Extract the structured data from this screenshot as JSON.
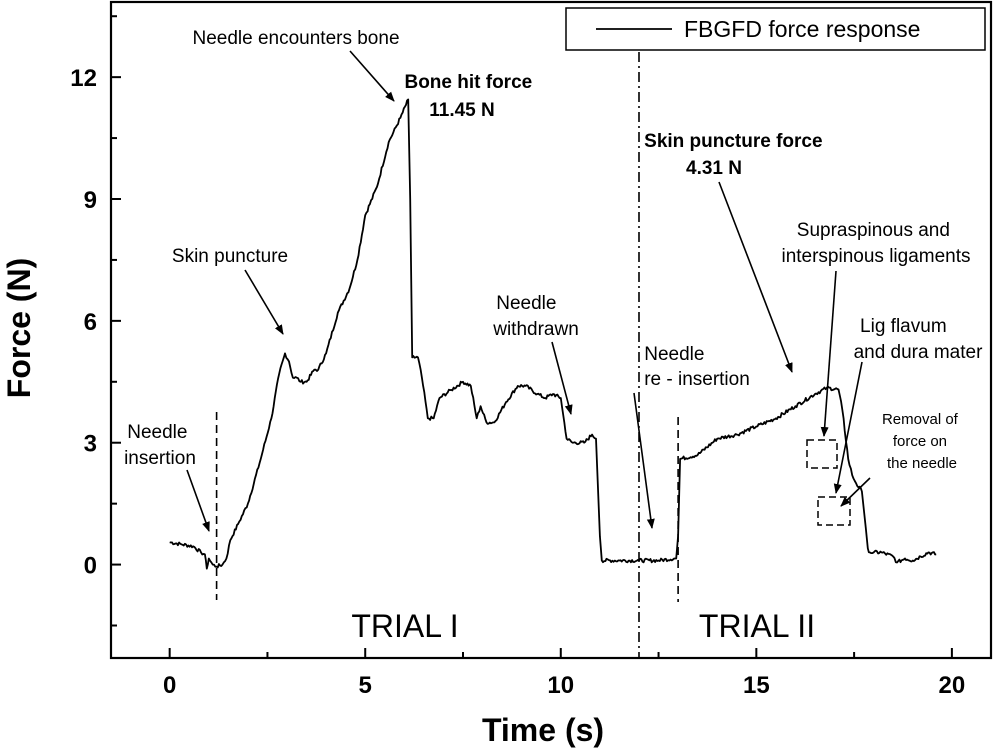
{
  "chart_data": {
    "type": "line",
    "xlabel": "Time (s)",
    "ylabel": "Force (N)",
    "xlim": [
      -1.5,
      21
    ],
    "ylim": [
      -2.3,
      13.85
    ],
    "xticks": [
      0,
      5,
      10,
      15,
      20
    ],
    "yticks": [
      0,
      3,
      6,
      9,
      12
    ],
    "grid": false,
    "legend": {
      "position": "top-right"
    },
    "series": [
      {
        "name": "FBGFD force response",
        "color": "#000000",
        "x": [
          0,
          0.3,
          0.6,
          0.8,
          0.9,
          0.95,
          1.0,
          1.1,
          1.2,
          1.35,
          1.45,
          1.55,
          1.75,
          2.0,
          2.3,
          2.6,
          2.8,
          2.95,
          3.05,
          3.15,
          3.25,
          3.35,
          3.5,
          3.7,
          3.8,
          4.0,
          4.3,
          4.6,
          4.8,
          5.0,
          5.3,
          5.6,
          5.9,
          6.1,
          6.15,
          6.2,
          6.35,
          6.45,
          6.6,
          6.75,
          6.9,
          7.2,
          7.5,
          7.7,
          7.85,
          7.95,
          8.1,
          8.3,
          8.6,
          8.9,
          9.1,
          9.4,
          9.6,
          9.8,
          10.0,
          10.15,
          10.3,
          10.6,
          10.8,
          10.9,
          11.0,
          11.05,
          11.5,
          12.0,
          12.5,
          12.9,
          12.95,
          13.0,
          13.05,
          13.5,
          14.0,
          14.5,
          15.0,
          15.5,
          16.0,
          16.5,
          16.8,
          17.1,
          17.2,
          17.35,
          17.45,
          17.55,
          17.7,
          17.8,
          17.85,
          17.9,
          18.0,
          18.2,
          18.5,
          18.6,
          18.8,
          19.0,
          19.2,
          19.4,
          19.6
        ],
        "y": [
          0.55,
          0.5,
          0.45,
          0.3,
          0.25,
          -0.1,
          0.15,
          0.0,
          -0.05,
          0.0,
          0.15,
          0.6,
          1.0,
          1.5,
          2.5,
          3.6,
          4.7,
          5.2,
          5.0,
          4.6,
          4.6,
          4.5,
          4.5,
          4.8,
          4.8,
          5.2,
          6.2,
          6.8,
          7.5,
          8.6,
          9.3,
          10.4,
          11.0,
          11.45,
          9.0,
          5.1,
          5.1,
          4.6,
          3.6,
          3.6,
          4.1,
          4.3,
          4.5,
          4.4,
          3.6,
          3.9,
          3.5,
          3.5,
          4.0,
          4.4,
          4.4,
          4.2,
          4.1,
          4.2,
          4.1,
          3.1,
          3.0,
          3.0,
          3.2,
          3.1,
          0.7,
          0.1,
          0.1,
          0.1,
          0.1,
          0.15,
          0.15,
          0.7,
          2.6,
          2.7,
          3.1,
          3.2,
          3.4,
          3.6,
          3.9,
          4.2,
          4.35,
          4.31,
          3.8,
          2.6,
          2.2,
          2.0,
          1.8,
          0.9,
          0.4,
          0.3,
          0.3,
          0.3,
          0.2,
          0.05,
          0.15,
          0.1,
          0.2,
          0.3,
          0.25
        ]
      }
    ],
    "annotations": [
      {
        "id": "needle-encounters-bone",
        "lines": [
          "Needle encounters bone"
        ],
        "bold": false,
        "small": false
      },
      {
        "id": "bone-hit-force",
        "lines": [
          "Bone hit force",
          "11.45 N"
        ],
        "bold": true,
        "small": false
      },
      {
        "id": "skin-puncture",
        "lines": [
          "Skin puncture"
        ],
        "bold": false,
        "small": false
      },
      {
        "id": "needle-insertion",
        "lines": [
          "Needle",
          "insertion"
        ],
        "bold": false,
        "small": false
      },
      {
        "id": "needle-withdrawn",
        "lines": [
          "Needle",
          "withdrawn"
        ],
        "bold": false,
        "small": false
      },
      {
        "id": "skin-puncture-force",
        "lines": [
          "Skin puncture force",
          "4.31 N"
        ],
        "bold": true,
        "small": false
      },
      {
        "id": "needle-reinsertion",
        "lines": [
          "Needle",
          "re - insertion"
        ],
        "bold": false,
        "small": false
      },
      {
        "id": "supraspinous",
        "lines": [
          "Supraspinous and",
          "interspinous ligaments"
        ],
        "bold": false,
        "small": false
      },
      {
        "id": "lig-flavum",
        "lines": [
          "Lig flavum",
          "and dura mater"
        ],
        "bold": false,
        "small": false
      },
      {
        "id": "removal-of-force",
        "lines": [
          "Removal of",
          "force on",
          "the needle"
        ],
        "bold": false,
        "small": true
      }
    ],
    "regions": [
      {
        "id": "trial-1",
        "label": "TRIAL I"
      },
      {
        "id": "trial-2",
        "label": "TRIAL II"
      }
    ],
    "vertical_markers": [
      {
        "id": "insertion-marker",
        "x": 1.2,
        "style": "dashed"
      },
      {
        "id": "trial-divider",
        "x": 12.0,
        "style": "dash-dot"
      },
      {
        "id": "reinsertion-marker",
        "x": 13.0,
        "style": "dashed"
      }
    ]
  }
}
